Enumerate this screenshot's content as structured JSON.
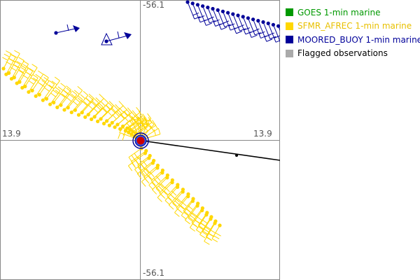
{
  "axis_labels": {
    "top": "-56.1",
    "bottom": "-56.1",
    "left": "13.9",
    "right": "13.9"
  },
  "legend": [
    {
      "label": "GOES 1-min marine",
      "color": "#009900",
      "text_color": "#009900"
    },
    {
      "label": "SFMR_AFREC 1-min marine",
      "color": "#ffd700",
      "text_color": "#e8c000"
    },
    {
      "label": "MOORED_BUOY 1-min marine",
      "color": "#000099",
      "text_color": "#000099"
    },
    {
      "label": "Flagged observations",
      "color": "#aaaaaa",
      "text_color": "#000000"
    }
  ],
  "colors": {
    "sfmr": "#ffd700",
    "buoy": "#000099",
    "center": "#cc0000",
    "track": "#000000",
    "axis": "#888888"
  }
}
